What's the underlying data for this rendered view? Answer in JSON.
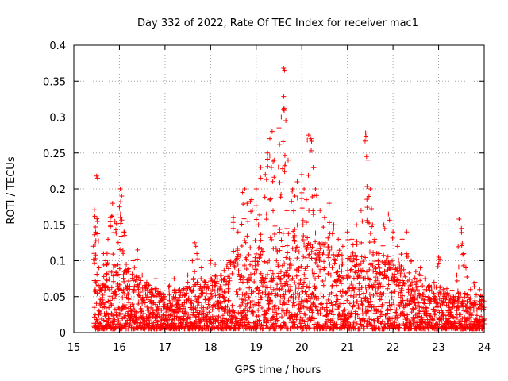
{
  "chart_data": {
    "type": "scatter",
    "title": "Day 332 of 2022, Rate Of TEC Index for receiver mac1",
    "xlabel": "GPS time / hours",
    "ylabel": "ROTI / TECUs",
    "xlim": [
      15,
      24
    ],
    "ylim": [
      0,
      0.4
    ],
    "x_ticks": [
      15,
      16,
      17,
      18,
      19,
      20,
      21,
      22,
      23,
      24
    ],
    "x_tick_labels": [
      "15",
      "16",
      "17",
      "18",
      "19",
      "20",
      "21",
      "22",
      "23",
      "24"
    ],
    "y_ticks": [
      0,
      0.05,
      0.1,
      0.15,
      0.2,
      0.25,
      0.3,
      0.35,
      0.4
    ],
    "y_tick_labels": [
      "0",
      "0.05",
      "0.1",
      "0.15",
      "0.2",
      "0.25",
      "0.3",
      "0.35",
      "0.4"
    ],
    "grid": true,
    "marker": "plus",
    "color": "#ff0000",
    "series": [
      {
        "name": "ROTI",
        "points": [
          [
            15.45,
            0.171
          ],
          [
            15.46,
            0.162
          ],
          [
            15.47,
            0.123
          ],
          [
            15.48,
            0.108
          ],
          [
            15.5,
            0.218
          ],
          [
            15.52,
            0.215
          ],
          [
            15.55,
            0.09
          ],
          [
            15.6,
            0.06
          ],
          [
            15.65,
            0.11
          ],
          [
            15.7,
            0.1
          ],
          [
            15.75,
            0.13
          ],
          [
            15.8,
            0.16
          ],
          [
            15.85,
            0.18
          ],
          [
            15.9,
            0.155
          ],
          [
            15.95,
            0.165
          ],
          [
            16.0,
            0.175
          ],
          [
            16.02,
            0.2
          ],
          [
            16.05,
            0.19
          ],
          [
            16.1,
            0.14
          ],
          [
            16.15,
            0.095
          ],
          [
            16.2,
            0.085
          ],
          [
            16.3,
            0.1
          ],
          [
            16.4,
            0.115
          ],
          [
            16.5,
            0.08
          ],
          [
            16.6,
            0.07
          ],
          [
            16.7,
            0.06
          ],
          [
            16.8,
            0.075
          ],
          [
            16.9,
            0.055
          ],
          [
            17.0,
            0.05
          ],
          [
            17.1,
            0.065
          ],
          [
            17.2,
            0.075
          ],
          [
            17.3,
            0.045
          ],
          [
            17.4,
            0.06
          ],
          [
            17.5,
            0.08
          ],
          [
            17.6,
            0.1
          ],
          [
            17.65,
            0.125
          ],
          [
            17.7,
            0.11
          ],
          [
            17.8,
            0.09
          ],
          [
            17.9,
            0.07
          ],
          [
            18.0,
            0.1
          ],
          [
            18.1,
            0.095
          ],
          [
            18.2,
            0.06
          ],
          [
            18.3,
            0.075
          ],
          [
            18.4,
            0.1
          ],
          [
            18.5,
            0.16
          ],
          [
            18.6,
            0.14
          ],
          [
            18.7,
            0.195
          ],
          [
            18.75,
            0.2
          ],
          [
            18.8,
            0.18
          ],
          [
            18.9,
            0.185
          ],
          [
            19.0,
            0.2
          ],
          [
            19.05,
            0.15
          ],
          [
            19.1,
            0.23
          ],
          [
            19.2,
            0.22
          ],
          [
            19.25,
            0.25
          ],
          [
            19.3,
            0.27
          ],
          [
            19.35,
            0.28
          ],
          [
            19.4,
            0.24
          ],
          [
            19.5,
            0.285
          ],
          [
            19.55,
            0.3
          ],
          [
            19.6,
            0.368
          ],
          [
            19.62,
            0.365
          ],
          [
            19.65,
            0.295
          ],
          [
            19.7,
            0.24
          ],
          [
            19.8,
            0.2
          ],
          [
            19.85,
            0.19
          ],
          [
            19.9,
            0.21
          ],
          [
            20.0,
            0.22
          ],
          [
            20.05,
            0.2
          ],
          [
            20.1,
            0.185
          ],
          [
            20.15,
            0.275
          ],
          [
            20.2,
            0.27
          ],
          [
            20.25,
            0.23
          ],
          [
            20.3,
            0.2
          ],
          [
            20.4,
            0.17
          ],
          [
            20.5,
            0.16
          ],
          [
            20.6,
            0.18
          ],
          [
            20.7,
            0.15
          ],
          [
            20.8,
            0.13
          ],
          [
            20.9,
            0.12
          ],
          [
            21.0,
            0.14
          ],
          [
            21.1,
            0.13
          ],
          [
            21.2,
            0.15
          ],
          [
            21.3,
            0.17
          ],
          [
            21.4,
            0.278
          ],
          [
            21.42,
            0.245
          ],
          [
            21.45,
            0.24
          ],
          [
            21.5,
            0.2
          ],
          [
            21.55,
            0.15
          ],
          [
            21.6,
            0.13
          ],
          [
            21.7,
            0.11
          ],
          [
            21.8,
            0.15
          ],
          [
            21.9,
            0.165
          ],
          [
            22.0,
            0.14
          ],
          [
            22.1,
            0.12
          ],
          [
            22.2,
            0.13
          ],
          [
            22.3,
            0.14
          ],
          [
            22.4,
            0.1
          ],
          [
            22.5,
            0.085
          ],
          [
            22.6,
            0.09
          ],
          [
            22.7,
            0.075
          ],
          [
            22.8,
            0.065
          ],
          [
            22.9,
            0.07
          ],
          [
            23.0,
            0.105
          ],
          [
            23.1,
            0.06
          ],
          [
            23.2,
            0.055
          ],
          [
            23.3,
            0.05
          ],
          [
            23.4,
            0.08
          ],
          [
            23.45,
            0.158
          ],
          [
            23.5,
            0.145
          ],
          [
            23.55,
            0.11
          ],
          [
            23.6,
            0.09
          ],
          [
            23.7,
            0.06
          ],
          [
            23.8,
            0.07
          ],
          [
            23.9,
            0.06
          ],
          [
            23.95,
            0.05
          ]
        ],
        "dense_band": {
          "x_start": 15.45,
          "x_end": 24.0,
          "step": 0.02,
          "baseline_low": 0.005,
          "baseline_high": 0.06,
          "envelope": [
            [
              15.45,
              0.06
            ],
            [
              16.0,
              0.1
            ],
            [
              16.5,
              0.07
            ],
            [
              17.0,
              0.05
            ],
            [
              17.5,
              0.06
            ],
            [
              18.0,
              0.07
            ],
            [
              18.5,
              0.1
            ],
            [
              19.0,
              0.12
            ],
            [
              19.5,
              0.14
            ],
            [
              20.0,
              0.13
            ],
            [
              20.5,
              0.12
            ],
            [
              21.0,
              0.1
            ],
            [
              21.5,
              0.11
            ],
            [
              22.0,
              0.1
            ],
            [
              22.5,
              0.07
            ],
            [
              23.0,
              0.06
            ],
            [
              23.5,
              0.05
            ],
            [
              24.0,
              0.04
            ]
          ]
        }
      }
    ]
  }
}
